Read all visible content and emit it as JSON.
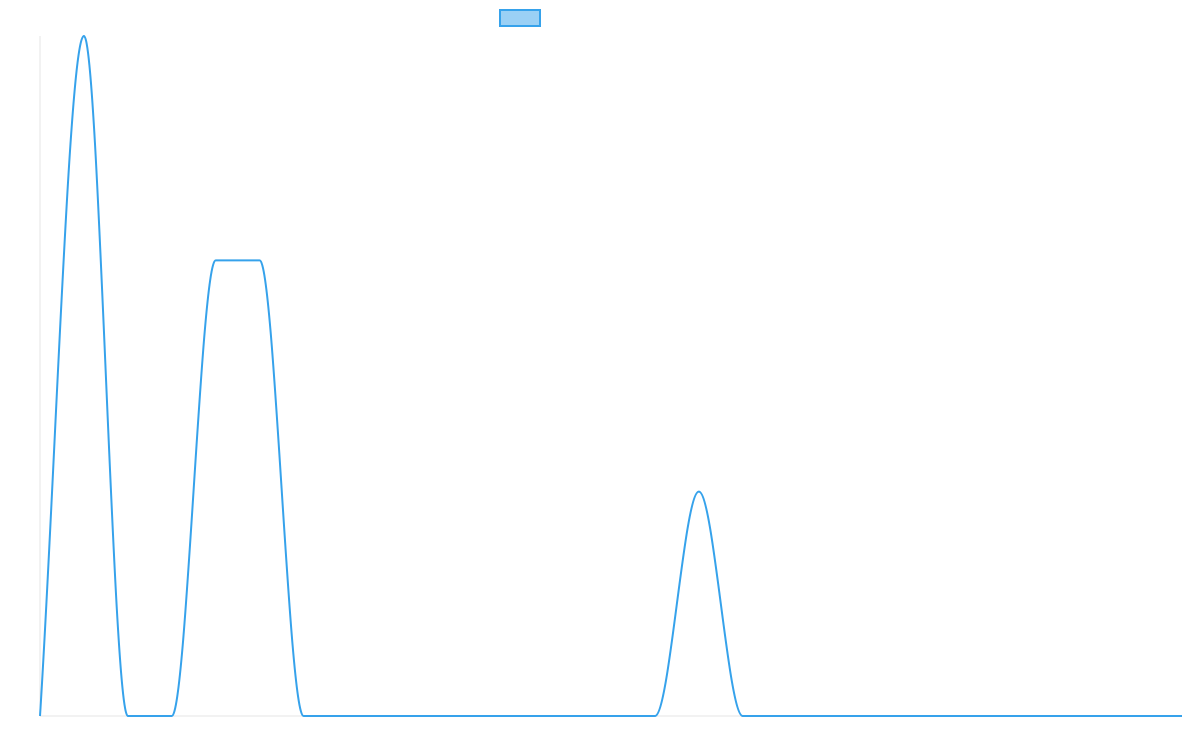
{
  "chart_data": {
    "type": "line",
    "title": "",
    "xlabel": "",
    "ylabel": "",
    "x": [
      0,
      1,
      2,
      3,
      4,
      5,
      6,
      7,
      8,
      9,
      10,
      11,
      12,
      13,
      14,
      15,
      16,
      17,
      18,
      19,
      20,
      21,
      22,
      23,
      24,
      25,
      26
    ],
    "xlim": [
      0,
      26
    ],
    "ylim": [
      0,
      100
    ],
    "grid": false,
    "legend": {
      "position": "top-center"
    },
    "series": [
      {
        "values": [
          0,
          100,
          0,
          0,
          67,
          67,
          0,
          0,
          0,
          0,
          0,
          0,
          0,
          0,
          0,
          33,
          0,
          0,
          0,
          0,
          0,
          0,
          0,
          0,
          0,
          0,
          0
        ],
        "color": "#36a2eb",
        "fill": "#9ad0f5"
      }
    ]
  }
}
